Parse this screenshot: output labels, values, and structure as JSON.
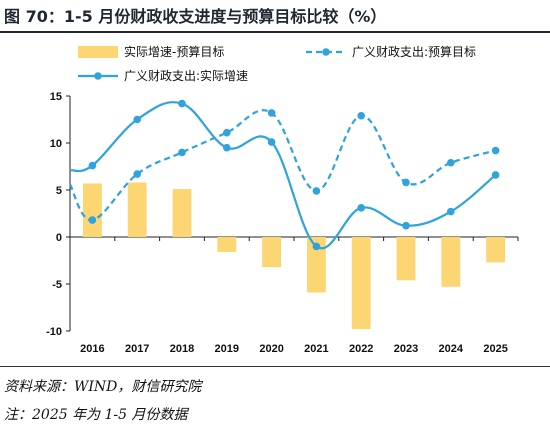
{
  "figure": {
    "title": "图 70：1-5 月份财政收支进度与预算目标比较（%）",
    "source": "资料来源：WIND，财信研究院",
    "note": "注：2025 年为 1-5 月份数据"
  },
  "colors": {
    "bar": "#fcd672",
    "line": "#2ea3dd",
    "title": "#1f2733"
  },
  "chart_data": {
    "type": "bar",
    "categories": [
      "2016",
      "2017",
      "2018",
      "2019",
      "2020",
      "2021",
      "2022",
      "2023",
      "2024",
      "2025"
    ],
    "ylim": [
      -10,
      15
    ],
    "yticks": [
      -10,
      -5,
      0,
      5,
      10,
      15
    ],
    "grid": false,
    "legend_position": "top",
    "series": [
      {
        "name": "实际增速-预算目标",
        "kind": "bar",
        "values": [
          5.7,
          5.8,
          5.1,
          -1.6,
          -3.2,
          -5.9,
          -9.8,
          -4.6,
          -5.3,
          -2.7
        ]
      },
      {
        "name": "广义财政支出:预算目标",
        "kind": "dashed-line",
        "values": [
          1.8,
          6.7,
          9.0,
          11.1,
          13.2,
          4.9,
          12.9,
          5.8,
          7.9,
          9.2
        ],
        "start": 5.6,
        "end": 9.3
      },
      {
        "name": "广义财政支出:实际增速",
        "kind": "line",
        "values": [
          7.6,
          12.5,
          14.2,
          9.5,
          10.1,
          -1.0,
          3.1,
          1.2,
          2.7,
          6.6
        ],
        "start": 7.1,
        "end": 6.6
      }
    ]
  }
}
